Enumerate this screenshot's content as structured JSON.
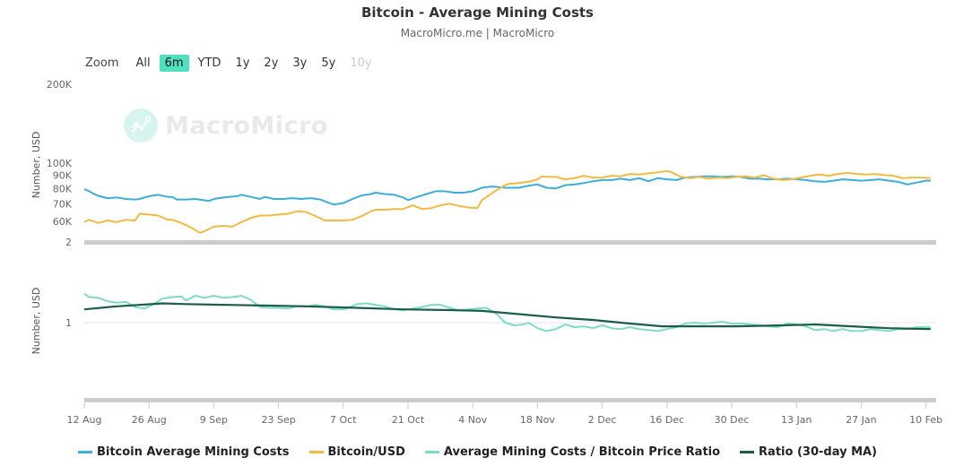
{
  "title": "Bitcoin - Average Mining Costs",
  "subtitle": "MacroMicro.me | MacroMicro",
  "watermark": "MacroMicro",
  "range_selector": {
    "label": "Zoom",
    "buttons": [
      {
        "label": "All",
        "state": "normal"
      },
      {
        "label": "6m",
        "state": "active"
      },
      {
        "label": "YTD",
        "state": "normal"
      },
      {
        "label": "1y",
        "state": "normal"
      },
      {
        "label": "2y",
        "state": "normal"
      },
      {
        "label": "3y",
        "state": "normal"
      },
      {
        "label": "5y",
        "state": "normal"
      },
      {
        "label": "10y",
        "state": "disabled"
      }
    ]
  },
  "legend": [
    {
      "label": "Bitcoin Average Mining Costs",
      "color": "#3aaedc"
    },
    {
      "label": "Bitcoin/USD",
      "color": "#f5b942"
    },
    {
      "label": "Average Mining Costs / Bitcoin Price Ratio",
      "color": "#7fdcc4"
    },
    {
      "label": "Ratio (30-day MA)",
      "color": "#1a5e4a"
    }
  ],
  "chart_data": [
    {
      "type": "line",
      "pane": "top",
      "scale": "log",
      "ylabel": "Number, USD",
      "yticks": [
        {
          "value": 200000,
          "label": "200K"
        },
        {
          "value": 100000,
          "label": "100K"
        },
        {
          "value": 90000,
          "label": "90K"
        },
        {
          "value": 80000,
          "label": "80K"
        },
        {
          "value": 70000,
          "label": "70K"
        },
        {
          "value": 60000,
          "label": "60K"
        }
      ],
      "ylim": [
        55000,
        200000
      ],
      "x_unit": "days since 12 Aug",
      "series": [
        {
          "name": "Bitcoin Average Mining Costs",
          "color": "#3aaedc",
          "x": [
            0,
            1,
            2,
            3,
            5,
            7,
            9,
            11,
            12,
            14,
            16,
            18,
            19,
            20,
            22,
            24,
            27,
            28,
            30,
            33,
            34,
            36,
            38,
            39,
            41,
            43,
            45,
            47,
            49,
            51,
            53,
            54,
            56,
            58,
            60,
            62,
            63,
            65,
            67,
            69,
            70,
            72,
            74,
            76,
            78,
            80,
            82,
            84,
            86,
            88,
            90,
            91,
            92,
            94,
            96,
            98,
            100,
            102,
            104,
            106,
            108,
            110,
            112,
            114,
            116,
            118,
            120,
            122,
            124,
            126,
            128,
            130,
            132,
            134,
            136,
            138,
            140,
            142,
            144,
            146,
            148,
            150,
            152,
            154,
            156,
            158,
            160,
            162,
            164,
            166,
            168,
            170,
            172,
            174,
            176,
            178,
            180,
            182,
            183
          ],
          "values": [
            79600,
            78200,
            76400,
            75000,
            73500,
            73900,
            73000,
            72600,
            73000,
            74800,
            75700,
            74300,
            74300,
            72600,
            72600,
            73000,
            71700,
            73000,
            73900,
            74800,
            75700,
            74300,
            73000,
            74300,
            73000,
            73000,
            73500,
            73000,
            73500,
            72600,
            70400,
            69500,
            70400,
            73000,
            75300,
            76200,
            77100,
            76200,
            75700,
            73900,
            72200,
            74300,
            76200,
            78100,
            78100,
            77100,
            77100,
            78100,
            80500,
            81400,
            80900,
            80500,
            80500,
            80500,
            81900,
            82900,
            80500,
            80000,
            82400,
            82900,
            83900,
            85300,
            86200,
            86200,
            87200,
            86200,
            87600,
            85300,
            87600,
            86700,
            86200,
            88100,
            88600,
            89100,
            89100,
            88600,
            89100,
            88600,
            87200,
            87200,
            86700,
            86700,
            87200,
            86700,
            86200,
            85300,
            84800,
            85700,
            86700,
            86200,
            85700,
            86200,
            86700,
            85700,
            84800,
            82900,
            84300,
            85700,
            85700
          ]
        },
        {
          "name": "Bitcoin/USD",
          "color": "#f5b942",
          "x": [
            0,
            1,
            3,
            5,
            7,
            9,
            11,
            12,
            14,
            16,
            18,
            19,
            21,
            23,
            25,
            26,
            28,
            30,
            32,
            34,
            36,
            38,
            40,
            42,
            44,
            46,
            48,
            50,
            52,
            54,
            56,
            58,
            60,
            62,
            63,
            65,
            67,
            69,
            71,
            73,
            75,
            77,
            79,
            81,
            83,
            85,
            86,
            87,
            89,
            91,
            92,
            94,
            96,
            98,
            99,
            100,
            102,
            104,
            106,
            108,
            110,
            112,
            114,
            116,
            118,
            120,
            122,
            124,
            126,
            127,
            129,
            131,
            133,
            135,
            137,
            139,
            141,
            143,
            145,
            147,
            149,
            151,
            153,
            155,
            157,
            159,
            161,
            163,
            165,
            167,
            169,
            171,
            173,
            175,
            177,
            179,
            181,
            183
          ],
          "values": [
            59500,
            60800,
            59100,
            60400,
            59500,
            60800,
            60400,
            64100,
            63600,
            63100,
            60800,
            60800,
            59100,
            56900,
            54200,
            55000,
            57200,
            57600,
            57200,
            59500,
            61800,
            63100,
            63100,
            63600,
            64100,
            65500,
            65100,
            62800,
            60400,
            60400,
            60400,
            60800,
            62800,
            65500,
            66400,
            66400,
            66800,
            66800,
            69000,
            66800,
            67300,
            69000,
            70000,
            68600,
            67700,
            67300,
            72200,
            74300,
            78600,
            82400,
            83400,
            83900,
            84800,
            86700,
            89100,
            88600,
            88600,
            86700,
            87600,
            89500,
            88100,
            88100,
            89500,
            89100,
            90900,
            90400,
            91400,
            92300,
            93200,
            92300,
            88600,
            87600,
            88600,
            87200,
            88100,
            87600,
            88600,
            89100,
            88100,
            89900,
            87200,
            86200,
            86700,
            88100,
            89500,
            90400,
            89500,
            90900,
            91800,
            90900,
            90400,
            90900,
            90000,
            89500,
            87600,
            88100,
            88100,
            87600
          ]
        }
      ]
    },
    {
      "type": "line",
      "pane": "bottom",
      "scale": "log",
      "ylabel": "Number, USD",
      "yticks": [
        {
          "value": 1,
          "label": "1"
        }
      ],
      "ylim": [
        0.6,
        1.6
      ],
      "x_unit": "days since 12 Aug",
      "series": [
        {
          "name": "Average Mining Costs / Bitcoin Price Ratio",
          "color": "#7fdcc4",
          "x": [
            0,
            1,
            3,
            5,
            7,
            9,
            11,
            13,
            15,
            17,
            19,
            21,
            22,
            24,
            26,
            28,
            30,
            32,
            34,
            36,
            38,
            40,
            42,
            44,
            46,
            48,
            50,
            52,
            54,
            56,
            57,
            59,
            61,
            63,
            65,
            67,
            69,
            71,
            73,
            75,
            77,
            79,
            81,
            83,
            85,
            87,
            89,
            91,
            93,
            95,
            96,
            98,
            100,
            102,
            104,
            106,
            108,
            110,
            112,
            114,
            116,
            118,
            120,
            122,
            124,
            126,
            128,
            130,
            132,
            134,
            136,
            138,
            140,
            142,
            144,
            146,
            148,
            150,
            152,
            154,
            156,
            158,
            160,
            162,
            164,
            166,
            168,
            170,
            172,
            174,
            176,
            178,
            180,
            183
          ],
          "values": [
            1.38,
            1.33,
            1.32,
            1.27,
            1.25,
            1.26,
            1.19,
            1.17,
            1.23,
            1.31,
            1.33,
            1.34,
            1.28,
            1.35,
            1.32,
            1.35,
            1.32,
            1.33,
            1.35,
            1.29,
            1.19,
            1.18,
            1.18,
            1.17,
            1.2,
            1.2,
            1.22,
            1.2,
            1.16,
            1.16,
            1.18,
            1.23,
            1.24,
            1.22,
            1.2,
            1.16,
            1.15,
            1.17,
            1.19,
            1.22,
            1.22,
            1.18,
            1.15,
            1.16,
            1.17,
            1.18,
            1.11,
            1.0,
            0.97,
            0.98,
            1.0,
            0.94,
            0.91,
            0.93,
            0.98,
            0.95,
            0.96,
            0.94,
            0.97,
            0.94,
            0.93,
            0.95,
            0.93,
            0.92,
            0.91,
            0.93,
            0.95,
            0.99,
            1.0,
            0.99,
            1.0,
            1.01,
            0.99,
            0.99,
            0.98,
            0.97,
            0.96,
            0.95,
            0.99,
            0.98,
            0.96,
            0.92,
            0.93,
            0.91,
            0.93,
            0.91,
            0.91,
            0.93,
            0.92,
            0.91,
            0.93,
            0.93,
            0.95,
            0.95
          ]
        },
        {
          "name": "Ratio (30-day MA)",
          "color": "#1a5e4a",
          "x": [
            0,
            7,
            17,
            22,
            30,
            40,
            48,
            59,
            69,
            79,
            86,
            94,
            102,
            110,
            118,
            125,
            131,
            141,
            151,
            158,
            166,
            174,
            183
          ],
          "values": [
            1.16,
            1.2,
            1.24,
            1.23,
            1.22,
            1.21,
            1.2,
            1.18,
            1.16,
            1.15,
            1.14,
            1.1,
            1.06,
            1.03,
            0.99,
            0.96,
            0.96,
            0.96,
            0.97,
            0.98,
            0.96,
            0.94,
            0.93
          ]
        }
      ]
    }
  ],
  "x_axis": {
    "ticks": [
      "12 Aug",
      "26 Aug",
      "9 Sep",
      "23 Sep",
      "7 Oct",
      "21 Oct",
      "4 Nov",
      "18 Nov",
      "2 Dec",
      "16 Dec",
      "30 Dec",
      "13 Jan",
      "27 Jan",
      "10 Feb"
    ]
  }
}
